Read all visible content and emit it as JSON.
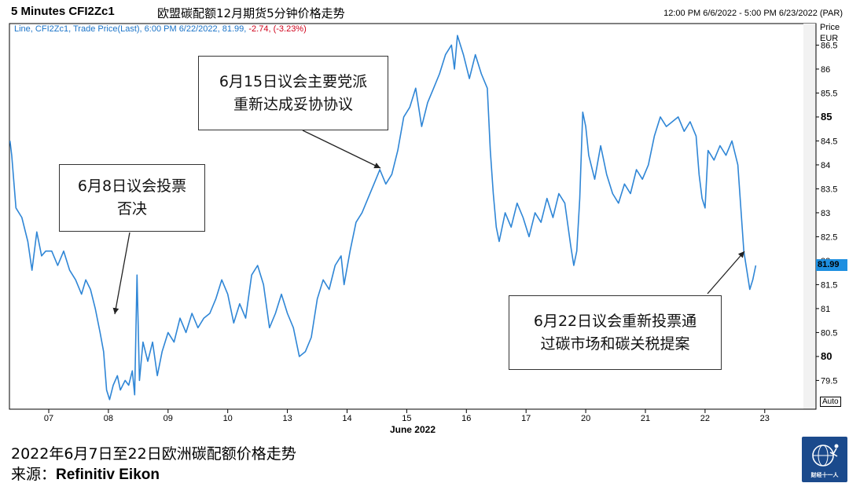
{
  "header": {
    "title": "5 Minutes CFI2Zc1",
    "subtitle": "欧盟碳配额12月期货5分钟价格走势",
    "range": "12:00 PM 6/6/2022 - 5:00 PM 6/23/2022 (PAR)"
  },
  "legend": {
    "series_info": "Line, CFI2Zc1, Trade Price(Last), 6:00 PM 6/22/2022, 81.99,",
    "change": "-2.74, (-3.23%)"
  },
  "axis": {
    "price_label": "Price",
    "currency": "EUR",
    "last_value": "81.99",
    "auto_label": "Auto"
  },
  "callouts": {
    "c1_line1": "6月8日议会投票",
    "c1_line2": "否决",
    "c2_line1": "6月15日议会主要党派",
    "c2_line2": "重新达成妥协协议",
    "c3_line1": "6月22日议会重新投票通",
    "c3_line2": "过碳市场和碳关税提案"
  },
  "caption": "2022年6月7日至22日欧洲碳配额价格走势",
  "source": {
    "label": "来源：",
    "name": "Refinitiv Eikon"
  },
  "logo": {
    "icon": "globe-runner-icon",
    "text": "财经十一人"
  },
  "colors": {
    "line": "#2f86d6",
    "change": "#d0021b",
    "badge": "#1e8fe0",
    "logo_bg": "#1b4a8c"
  },
  "chart_data": {
    "type": "line",
    "title": "5 Minutes CFI2Zc1",
    "xlabel": "June 2022",
    "ylabel": "Price EUR",
    "x_ticks": [
      "07",
      "08",
      "09",
      "10",
      "13",
      "14",
      "15",
      "16",
      "17",
      "20",
      "21",
      "22",
      "23"
    ],
    "y_ticks": [
      79.5,
      80,
      80.5,
      81,
      81.5,
      82,
      82.5,
      83,
      83.5,
      84,
      84.5,
      85,
      85.5,
      86,
      86.5
    ],
    "y_bold_ticks": [
      80,
      85
    ],
    "ylim": [
      78.9,
      86.95
    ],
    "grid": false,
    "series": [
      {
        "values": [
          [
            -0.65,
            84.5
          ],
          [
            -0.62,
            84.2
          ],
          [
            -0.55,
            83.1
          ],
          [
            -0.45,
            82.9
          ],
          [
            -0.35,
            82.4
          ],
          [
            -0.28,
            81.8
          ],
          [
            -0.2,
            82.6
          ],
          [
            -0.12,
            82.1
          ],
          [
            -0.05,
            82.2
          ],
          [
            0.05,
            82.2
          ],
          [
            0.15,
            81.9
          ],
          [
            0.25,
            82.2
          ],
          [
            0.35,
            81.8
          ],
          [
            0.45,
            81.6
          ],
          [
            0.55,
            81.3
          ],
          [
            0.62,
            81.6
          ],
          [
            0.7,
            81.4
          ],
          [
            0.78,
            81.0
          ],
          [
            0.86,
            80.5
          ],
          [
            0.92,
            80.1
          ],
          [
            0.97,
            79.3
          ],
          [
            1.02,
            79.1
          ],
          [
            1.08,
            79.4
          ],
          [
            1.15,
            79.6
          ],
          [
            1.2,
            79.3
          ],
          [
            1.28,
            79.5
          ],
          [
            1.34,
            79.4
          ],
          [
            1.4,
            79.7
          ],
          [
            1.44,
            79.2
          ],
          [
            1.48,
            81.7
          ],
          [
            1.52,
            79.5
          ],
          [
            1.58,
            80.3
          ],
          [
            1.66,
            79.9
          ],
          [
            1.74,
            80.3
          ],
          [
            1.82,
            79.6
          ],
          [
            1.9,
            80.1
          ],
          [
            2.0,
            80.5
          ],
          [
            2.1,
            80.3
          ],
          [
            2.2,
            80.8
          ],
          [
            2.3,
            80.5
          ],
          [
            2.4,
            80.9
          ],
          [
            2.5,
            80.6
          ],
          [
            2.6,
            80.8
          ],
          [
            2.7,
            80.9
          ],
          [
            2.8,
            81.2
          ],
          [
            2.9,
            81.6
          ],
          [
            3.0,
            81.3
          ],
          [
            3.1,
            80.7
          ],
          [
            3.2,
            81.1
          ],
          [
            3.3,
            80.8
          ],
          [
            3.4,
            81.7
          ],
          [
            3.5,
            81.9
          ],
          [
            3.6,
            81.5
          ],
          [
            3.7,
            80.6
          ],
          [
            3.8,
            80.9
          ],
          [
            3.9,
            81.3
          ],
          [
            4.0,
            80.9
          ],
          [
            4.1,
            80.6
          ],
          [
            4.2,
            80.0
          ],
          [
            4.3,
            80.1
          ],
          [
            4.4,
            80.4
          ],
          [
            4.5,
            81.2
          ],
          [
            4.6,
            81.6
          ],
          [
            4.7,
            81.4
          ],
          [
            4.8,
            81.9
          ],
          [
            4.9,
            82.1
          ],
          [
            4.95,
            81.5
          ],
          [
            5.05,
            82.2
          ],
          [
            5.15,
            82.8
          ],
          [
            5.25,
            83.0
          ],
          [
            5.35,
            83.3
          ],
          [
            5.45,
            83.6
          ],
          [
            5.55,
            83.9
          ],
          [
            5.65,
            83.6
          ],
          [
            5.75,
            83.8
          ],
          [
            5.85,
            84.3
          ],
          [
            5.95,
            85.0
          ],
          [
            6.05,
            85.2
          ],
          [
            6.15,
            85.6
          ],
          [
            6.25,
            84.8
          ],
          [
            6.35,
            85.3
          ],
          [
            6.45,
            85.6
          ],
          [
            6.55,
            85.9
          ],
          [
            6.65,
            86.3
          ],
          [
            6.75,
            86.5
          ],
          [
            6.8,
            86.0
          ],
          [
            6.85,
            86.7
          ],
          [
            6.95,
            86.3
          ],
          [
            7.05,
            85.8
          ],
          [
            7.15,
            86.3
          ],
          [
            7.25,
            85.9
          ],
          [
            7.35,
            85.6
          ],
          [
            7.4,
            84.3
          ],
          [
            7.45,
            83.4
          ],
          [
            7.5,
            82.7
          ],
          [
            7.55,
            82.4
          ],
          [
            7.65,
            83.0
          ],
          [
            7.75,
            82.7
          ],
          [
            7.85,
            83.2
          ],
          [
            7.95,
            82.9
          ],
          [
            8.05,
            82.5
          ],
          [
            8.15,
            83.0
          ],
          [
            8.25,
            82.8
          ],
          [
            8.35,
            83.3
          ],
          [
            8.45,
            82.9
          ],
          [
            8.55,
            83.4
          ],
          [
            8.65,
            83.2
          ],
          [
            8.75,
            82.3
          ],
          [
            8.8,
            81.9
          ],
          [
            8.85,
            82.2
          ],
          [
            8.9,
            83.3
          ],
          [
            8.95,
            85.1
          ],
          [
            9.0,
            84.8
          ],
          [
            9.05,
            84.2
          ],
          [
            9.15,
            83.7
          ],
          [
            9.25,
            84.4
          ],
          [
            9.35,
            83.8
          ],
          [
            9.45,
            83.4
          ],
          [
            9.55,
            83.2
          ],
          [
            9.65,
            83.6
          ],
          [
            9.75,
            83.4
          ],
          [
            9.85,
            83.9
          ],
          [
            9.95,
            83.7
          ],
          [
            10.05,
            84.0
          ],
          [
            10.15,
            84.6
          ],
          [
            10.25,
            85.0
          ],
          [
            10.35,
            84.8
          ],
          [
            10.45,
            84.9
          ],
          [
            10.55,
            85.0
          ],
          [
            10.65,
            84.7
          ],
          [
            10.75,
            84.9
          ],
          [
            10.85,
            84.6
          ],
          [
            10.9,
            83.8
          ],
          [
            10.95,
            83.3
          ],
          [
            11.0,
            83.1
          ],
          [
            11.05,
            84.3
          ],
          [
            11.15,
            84.1
          ],
          [
            11.25,
            84.4
          ],
          [
            11.35,
            84.2
          ],
          [
            11.45,
            84.5
          ],
          [
            11.55,
            84.0
          ],
          [
            11.6,
            83.1
          ],
          [
            11.65,
            82.2
          ],
          [
            11.7,
            81.8
          ],
          [
            11.75,
            81.4
          ],
          [
            11.8,
            81.6
          ],
          [
            11.85,
            81.9
          ]
        ]
      }
    ]
  }
}
